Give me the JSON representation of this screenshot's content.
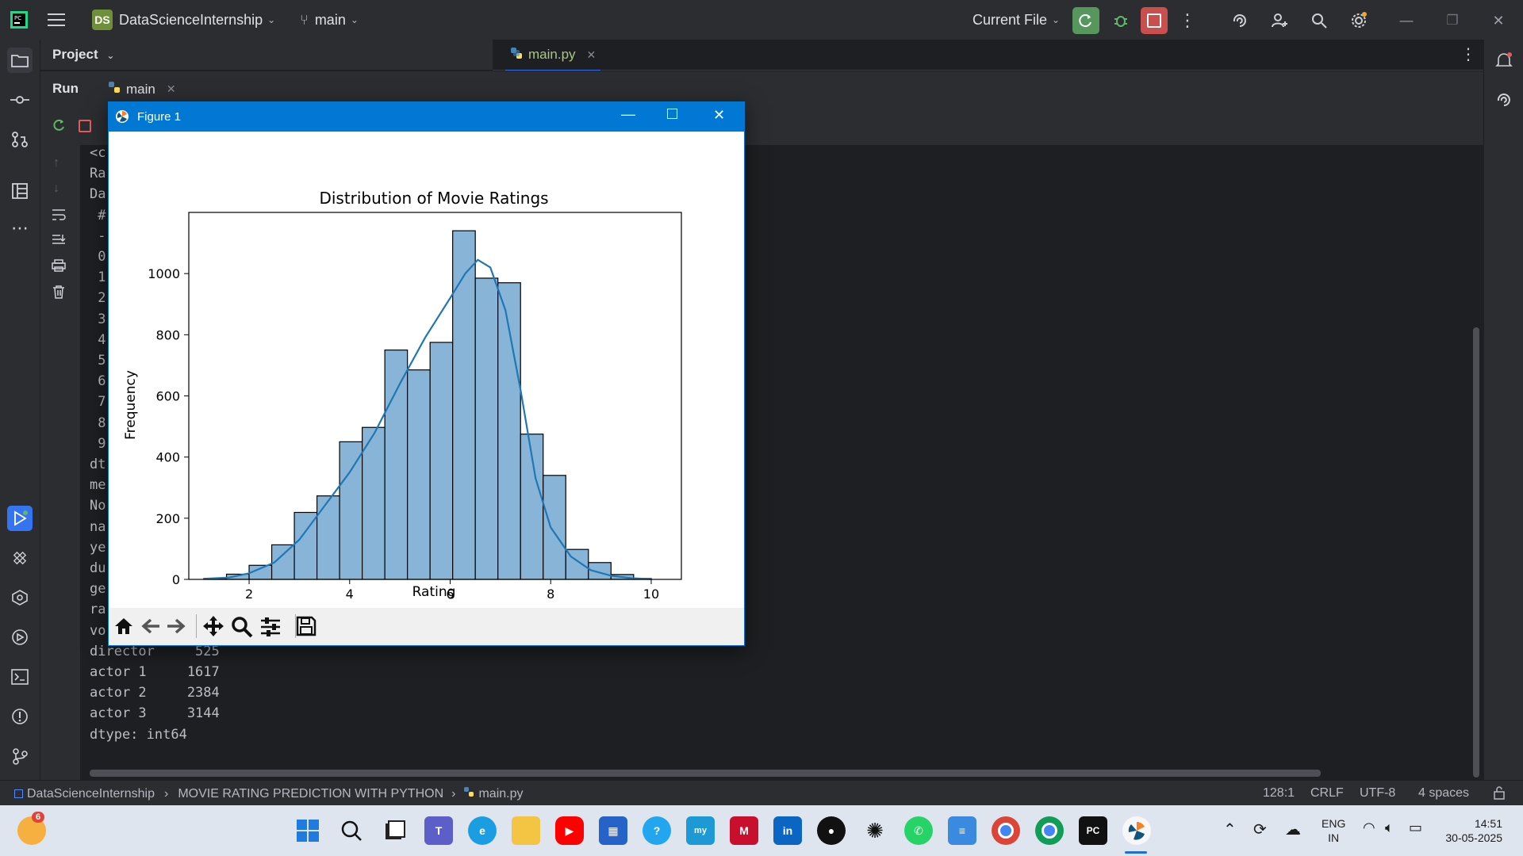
{
  "topbar": {
    "project_badge": "DS",
    "project_name": "DataScienceInternship",
    "branch": "main",
    "run_config": "Current File"
  },
  "project_panel": {
    "title": "Project"
  },
  "editor": {
    "tabs": [
      {
        "label": "main.py"
      }
    ]
  },
  "run_panel": {
    "title": "Run",
    "tab_label": "main",
    "console_lines": [
      "<c",
      "Ra",
      "Da",
      " #",
      " --",
      " 0",
      " 1",
      " 2",
      " 3",
      " 4",
      " 5",
      " 6",
      " 7",
      " 8",
      " 9",
      "dt",
      "me",
      "No",
      "na",
      "ye",
      "du",
      "ge",
      "ra",
      "vo",
      "director     525",
      "actor 1     1617",
      "actor 2     2384",
      "actor 3     3144",
      "dtype: int64"
    ]
  },
  "figure": {
    "window_title": "Figure 1",
    "chart_data": {
      "type": "bar",
      "title": "Distribution of Movie Ratings",
      "xlabel": "Rating",
      "ylabel": "Frequency",
      "xlim": [
        0.8,
        10.6
      ],
      "ylim": [
        0,
        1200
      ],
      "x_ticks": [
        "2",
        "4",
        "6",
        "8",
        "10"
      ],
      "y_ticks": [
        "0",
        "200",
        "400",
        "600",
        "800",
        "1000"
      ],
      "bin_edges": [
        1.1,
        1.55,
        2.0,
        2.45,
        2.9,
        3.35,
        3.8,
        4.25,
        4.7,
        5.15,
        5.6,
        6.05,
        6.5,
        6.95,
        7.4,
        7.85,
        8.3,
        8.75,
        9.2,
        9.65,
        10.0
      ],
      "counts": [
        3,
        17,
        46,
        113,
        219,
        273,
        450,
        497,
        750,
        685,
        775,
        1140,
        985,
        970,
        475,
        340,
        98,
        55,
        16,
        3
      ],
      "kde": {
        "x": [
          1.1,
          1.6,
          2.0,
          2.5,
          3.0,
          3.5,
          4.0,
          4.5,
          5.0,
          5.5,
          6.0,
          6.3,
          6.55,
          6.8,
          7.1,
          7.4,
          7.7,
          8.0,
          8.4,
          8.8,
          9.2,
          9.6,
          10.0
        ],
        "y": [
          2,
          6,
          20,
          55,
          130,
          240,
          350,
          480,
          640,
          790,
          920,
          1000,
          1045,
          1020,
          880,
          620,
          330,
          170,
          75,
          30,
          12,
          4,
          1
        ]
      },
      "bar_color": "#88b4d8",
      "line_color": "#1f77b4"
    }
  },
  "statusbar": {
    "breadcrumb_project": "DataScienceInternship",
    "breadcrumb_folder": "MOVIE RATING PREDICTION WITH PYTHON",
    "breadcrumb_file": "main.py",
    "position": "128:1",
    "line_sep": "CRLF",
    "encoding": "UTF-8",
    "indent": "4 spaces"
  },
  "taskbar": {
    "weather_badge": "6",
    "lang_line1": "ENG",
    "lang_line2": "IN",
    "time": "14:51",
    "date": "30-05-2025",
    "app_icons": [
      "windows-start",
      "search",
      "task-view",
      "teams",
      "edge",
      "file-explorer",
      "youtube",
      "ms-store",
      "copilot",
      "myhp",
      "mcafee",
      "linkedin",
      "github",
      "chatgpt",
      "whatsapp",
      "notepad",
      "chrome",
      "chrome-profile",
      "pycharm",
      "matplotlib-figure"
    ]
  }
}
